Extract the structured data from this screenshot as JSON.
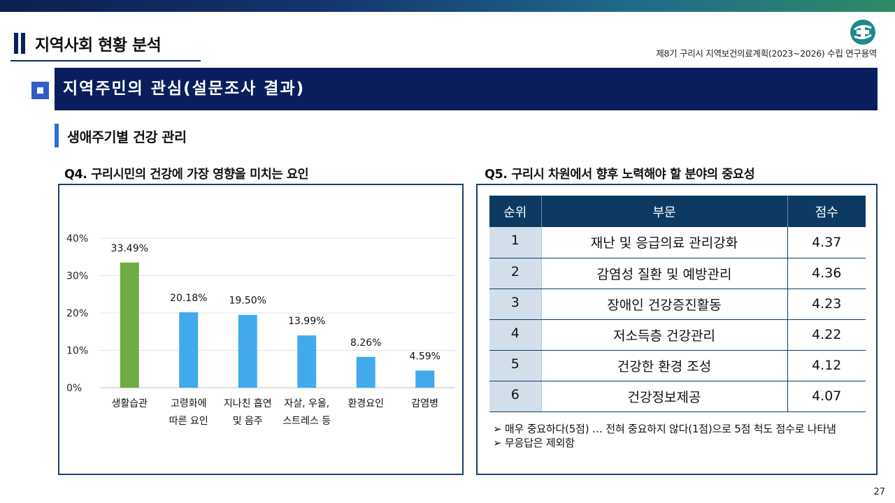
{
  "header": {
    "section_title": "지역사회 현황 분석",
    "project_name": "제8기 구리시 지역보건의료계획(2023~2026) 수립 연구용역"
  },
  "banner": {
    "title": "지역주민의 관심(설문조사 결과)"
  },
  "subheading": "생애주기별 건강 관리",
  "q4": {
    "title": "Q4. 구리시민의 건강에 가장 영향을 미치는 요인"
  },
  "q5": {
    "title": "Q5. 구리시 차원에서 향후 노력해야 할 분야의 중요성",
    "headers": [
      "순위",
      "부문",
      "점수"
    ],
    "rows": [
      {
        "rank": "1",
        "name": "재난 및 응급의료 관리강화",
        "score": "4.37"
      },
      {
        "rank": "2",
        "name": "감염성 질환 및 예방관리",
        "score": "4.36"
      },
      {
        "rank": "3",
        "name": "장애인 건강증진활동",
        "score": "4.23"
      },
      {
        "rank": "4",
        "name": "저소득층 건강관리",
        "score": "4.22"
      },
      {
        "rank": "5",
        "name": "건강한 환경 조성",
        "score": "4.12"
      },
      {
        "rank": "6",
        "name": "건강정보제공",
        "score": "4.07"
      }
    ],
    "notes": [
      "➢ 매우 중요하다(5점) … 전혀 중요하지 않다(1점)으로 5점 척도 점수로 나타냄",
      "➢ 무응답은 제외함"
    ]
  },
  "page_number": "27",
  "colors": {
    "highlight_bar": "#6fac46",
    "bar": "#42aaec",
    "navy": "#0a1e5e"
  },
  "chart_data": {
    "type": "bar",
    "title": "Q4. 구리시민의 건강에 가장 영향을 미치는 요인",
    "categories": [
      [
        "생활습관"
      ],
      [
        "고령화에",
        "따른 요인"
      ],
      [
        "지나친 흡연",
        "및 음주"
      ],
      [
        "자살, 우울,",
        "스트레스 등"
      ],
      [
        "환경요인"
      ],
      [
        "감염병"
      ]
    ],
    "values": [
      33.49,
      20.18,
      19.5,
      13.99,
      8.26,
      4.59
    ],
    "value_labels": [
      "33.49%",
      "20.18%",
      "19.50%",
      "13.99%",
      "8.26%",
      "4.59%"
    ],
    "yticks": [
      0,
      10,
      20,
      30,
      40
    ],
    "ytick_labels": [
      "0%",
      "10%",
      "20%",
      "30%",
      "40%"
    ],
    "ylim": [
      0,
      40
    ],
    "grid": true,
    "xlabel": "",
    "ylabel": ""
  }
}
